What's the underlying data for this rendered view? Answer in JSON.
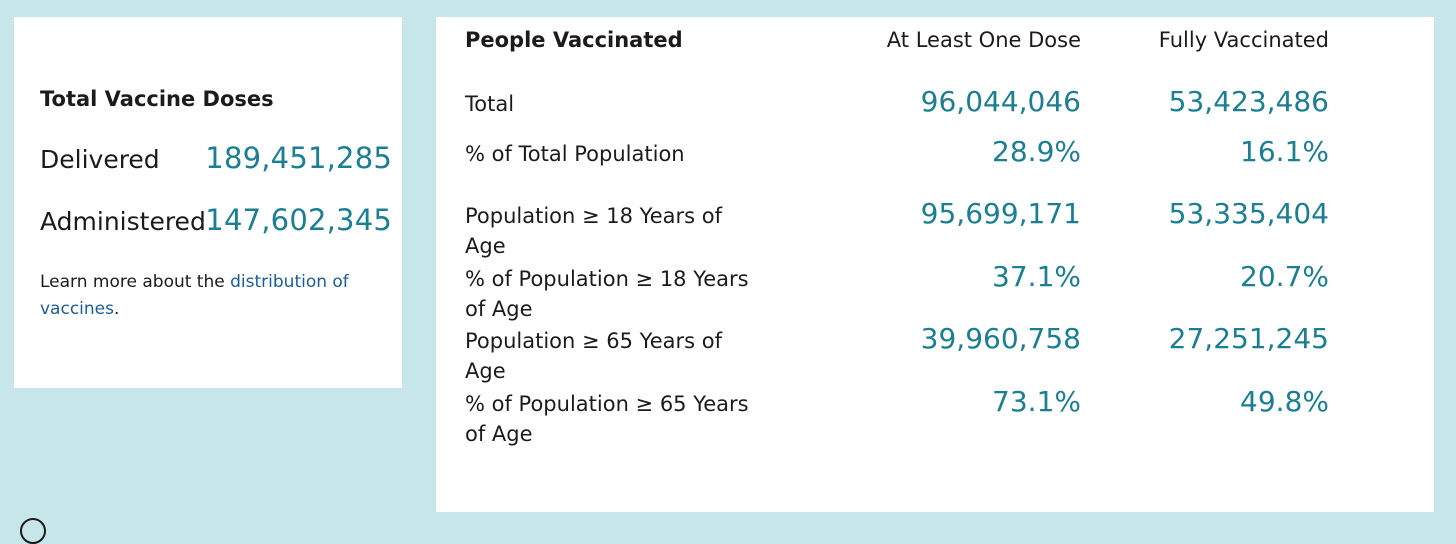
{
  "doses": {
    "title": "Total Vaccine Doses",
    "delivered_label": "Delivered",
    "delivered_value": "189,451,285",
    "administered_label": "Administered",
    "administered_value": "147,602,345",
    "learn_more_prefix": "Learn more about the ",
    "learn_more_link": "distribution of vaccines",
    "learn_more_suffix": "."
  },
  "people": {
    "title": "People Vaccinated",
    "col1_header": "At Least One Dose",
    "col2_header": "Fully Vaccinated",
    "rows": [
      {
        "label": "Total",
        "one_dose": "96,044,046",
        "fully": "53,423,486"
      },
      {
        "label": "% of Total Population",
        "one_dose": "28.9%",
        "fully": "16.1%"
      },
      {
        "label": "Population ≥ 18 Years of Age",
        "one_dose": "95,699,171",
        "fully": "53,335,404"
      },
      {
        "label": "% of Population ≥ 18 Years of Age",
        "one_dose": "37.1%",
        "fully": "20.7%"
      },
      {
        "label": "Population ≥ 65 Years of Age",
        "one_dose": "39,960,758",
        "fully": "27,251,245"
      },
      {
        "label": "% of Population ≥ 65 Years of Age",
        "one_dose": "73.1%",
        "fully": "49.8%"
      }
    ]
  },
  "colors": {
    "page_background": "#c7e6ea",
    "card_background": "#ffffff",
    "value_teal": "#1a7f92",
    "link_blue": "#1a5e96"
  }
}
